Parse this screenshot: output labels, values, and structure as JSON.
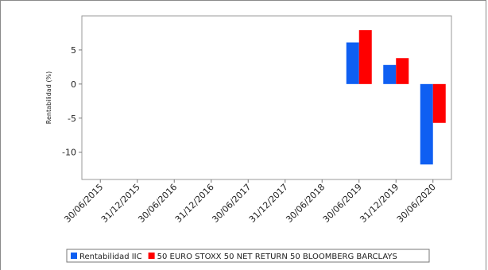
{
  "chart_data": {
    "type": "bar",
    "title": "",
    "xlabel": "",
    "ylabel": "Rentabilidad (%)",
    "ylim": [
      -14,
      10
    ],
    "yticks": [
      5,
      0,
      -5,
      -10
    ],
    "grid": false,
    "legend_position": "bottom",
    "categories": [
      "30/06/2015",
      "31/12/2015",
      "30/06/2016",
      "31/12/2016",
      "30/06/2017",
      "31/12/2017",
      "30/06/2018",
      "30/06/2019",
      "31/12/2019",
      "30/06/2020"
    ],
    "series": [
      {
        "name": "Rentabilidad IIC",
        "color": "#0f5ff2",
        "values": [
          null,
          null,
          null,
          null,
          null,
          null,
          null,
          6.1,
          2.8,
          -11.8
        ]
      },
      {
        "name": "50 EURO STOXX 50 NET RETURN 50 BLOOMBERG BARCLAYS",
        "color": "#ff0000",
        "values": [
          null,
          null,
          null,
          null,
          null,
          null,
          null,
          7.9,
          3.8,
          -5.7
        ]
      }
    ]
  }
}
